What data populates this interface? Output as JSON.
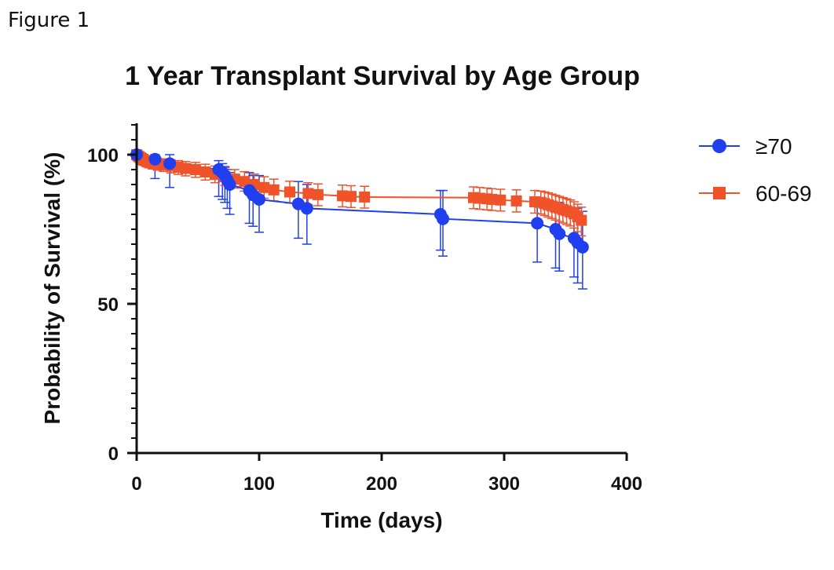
{
  "figure_label": "Figure 1",
  "chart_data": {
    "type": "line",
    "title": "1 Year Transplant Survival by Age Group",
    "xlabel": "Time (days)",
    "ylabel": "Probability of Survival (%)",
    "xlim": [
      0,
      400
    ],
    "ylim": [
      0,
      110
    ],
    "x_ticks": [
      0,
      100,
      200,
      300,
      400
    ],
    "y_ticks": [
      0,
      50,
      100
    ],
    "grid": false,
    "legend_position": "right",
    "series": [
      {
        "name": "≥70",
        "color": "#1f3ff0",
        "marker": "circle",
        "x": [
          0,
          15,
          27,
          67,
          70,
          72,
          74,
          76,
          92,
          95,
          100,
          132,
          139,
          248,
          250,
          327,
          342,
          345,
          357,
          360,
          364
        ],
        "y": [
          100,
          98.5,
          97,
          95,
          94,
          93,
          91.5,
          90,
          88,
          86.5,
          85,
          83.5,
          82,
          80,
          78.5,
          77,
          75,
          73.5,
          72,
          70.5,
          69
        ],
        "upper": [
          100,
          100,
          100,
          98,
          97,
          96,
          95,
          94,
          94,
          93,
          93,
          91,
          90,
          88,
          88,
          85,
          84,
          84,
          82,
          82,
          81
        ],
        "lower": [
          100,
          92,
          89,
          86,
          85,
          84,
          82,
          80,
          77,
          76,
          74,
          72,
          70,
          68,
          66,
          64,
          62,
          61,
          59,
          57,
          55
        ]
      },
      {
        "name": "60-69",
        "color": "#f0522a",
        "marker": "square",
        "x": [
          0,
          1,
          2,
          3,
          4,
          5,
          6,
          8,
          10,
          13,
          17,
          22,
          28,
          34,
          40,
          48,
          56,
          64,
          72,
          80,
          88,
          96,
          104,
          112,
          125,
          140,
          148,
          168,
          175,
          186,
          275,
          280,
          286,
          290,
          297,
          310,
          325,
          330,
          333,
          336,
          339,
          342,
          345,
          348,
          351,
          354,
          357,
          360,
          363
        ],
        "y": [
          100,
          99.6,
          99.3,
          99,
          98.7,
          98.4,
          98.1,
          97.8,
          97.5,
          97.2,
          96.9,
          96.6,
          96.2,
          95.8,
          95.4,
          95,
          94.2,
          93.4,
          92.6,
          91.8,
          91,
          90,
          89,
          88.2,
          87.5,
          87,
          86.6,
          86.2,
          86,
          85.8,
          85.6,
          85.4,
          85.2,
          85,
          84.8,
          84.5,
          84.2,
          84,
          83.6,
          83.2,
          82.8,
          82.4,
          82,
          81.6,
          81.2,
          80.8,
          80.2,
          79.2,
          78
        ],
        "upper": [
          100,
          100,
          100,
          100,
          100,
          100,
          100,
          99.5,
          99.3,
          99,
          98.8,
          98.6,
          98.3,
          98,
          97.7,
          97.4,
          96.8,
          96.2,
          95.6,
          95,
          94.3,
          93.5,
          92.6,
          91.8,
          91.1,
          90.6,
          90.2,
          89.8,
          89.6,
          89.4,
          89.2,
          89,
          88.8,
          88.6,
          88.4,
          88.2,
          88,
          87.8,
          87.5,
          87.2,
          86.8,
          86.4,
          86,
          85.6,
          85.2,
          84.8,
          84.2,
          83.4,
          82.4
        ],
        "lower": [
          100,
          99,
          98.5,
          98,
          97.5,
          97,
          96.5,
          96,
          95.6,
          95.2,
          94.8,
          94.4,
          93.9,
          93.4,
          92.9,
          92.4,
          91.5,
          90.6,
          89.7,
          88.8,
          87.8,
          86.6,
          85.4,
          84.5,
          83.8,
          83.3,
          82.9,
          82.5,
          82.3,
          82.1,
          81.9,
          81.7,
          81.5,
          81.3,
          81.1,
          80.8,
          80.4,
          80.1,
          79.6,
          79.1,
          78.6,
          78.1,
          77.6,
          77.1,
          76.6,
          76.1,
          75.4,
          74.2,
          72.8
        ]
      }
    ]
  }
}
